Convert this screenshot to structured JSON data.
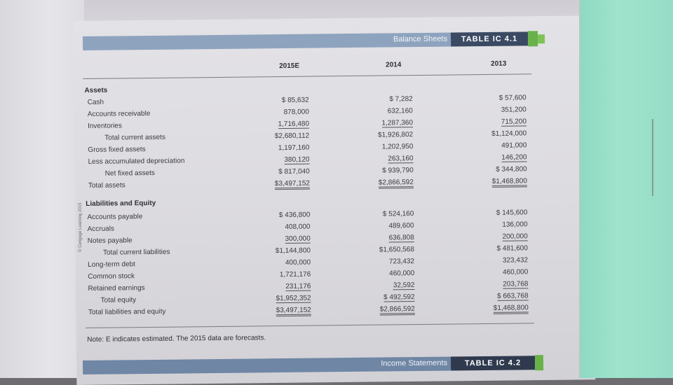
{
  "header": {
    "title": "Balance Sheets",
    "table_id": "TABLE IC 4.1"
  },
  "columns": [
    "2015E",
    "2014",
    "2013"
  ],
  "assets": {
    "heading": "Assets",
    "rows": [
      {
        "label": "Cash",
        "v": [
          "$   85,632",
          "$      7,282",
          "$   57,600"
        ]
      },
      {
        "label": "Accounts receivable",
        "v": [
          "878,000",
          "632,160",
          "351,200"
        ]
      },
      {
        "label": "Inventories",
        "v": [
          "1,716,480",
          "1,287,360",
          "715,200"
        ]
      },
      {
        "label": "Total current assets",
        "v": [
          "$2,680,112",
          "$1,926,802",
          "$1,124,000"
        ]
      },
      {
        "label": "Gross fixed assets",
        "v": [
          "1,197,160",
          "1,202,950",
          "491,000"
        ]
      },
      {
        "label": "Less accumulated depreciation",
        "v": [
          "380,120",
          "263,160",
          "146,200"
        ]
      },
      {
        "label": "Net fixed assets",
        "v": [
          "$  817,040",
          "$  939,790",
          "$  344,800"
        ]
      },
      {
        "label": "Total assets",
        "v": [
          "$3,497,152",
          "$2,866,592",
          "$1,468,800"
        ]
      }
    ]
  },
  "liabilities": {
    "heading": "Liabilities and Equity",
    "rows": [
      {
        "label": "Accounts payable",
        "v": [
          "$  436,800",
          "$  524,160",
          "$  145,600"
        ]
      },
      {
        "label": "Accruals",
        "v": [
          "408,000",
          "489,600",
          "136,000"
        ]
      },
      {
        "label": "Notes payable",
        "v": [
          "300,000",
          "636,808",
          "200,000"
        ]
      },
      {
        "label": "Total current liabilities",
        "v": [
          "$1,144,800",
          "$1,650,568",
          "$  481,600"
        ]
      },
      {
        "label": "Long-term debt",
        "v": [
          "400,000",
          "723,432",
          "323,432"
        ]
      },
      {
        "label": "Common stock",
        "v": [
          "1,721,176",
          "460,000",
          "460,000"
        ]
      },
      {
        "label": "Retained earnings",
        "v": [
          "231,176",
          "32,592",
          "203,768"
        ]
      },
      {
        "label": "Total equity",
        "v": [
          "$1,952,352",
          "$  492,592",
          "$  663,768"
        ]
      },
      {
        "label": "Total liabilities and equity",
        "v": [
          "$3,497,152",
          "$2,866,592",
          "$1,468,800"
        ]
      }
    ]
  },
  "note": "Note: E indicates estimated. The 2015 data are forecasts.",
  "side_credit": "© Cengage Learning 2015",
  "footer": {
    "title": "Income Statements",
    "table_id": "TABLE IC 4.2"
  }
}
